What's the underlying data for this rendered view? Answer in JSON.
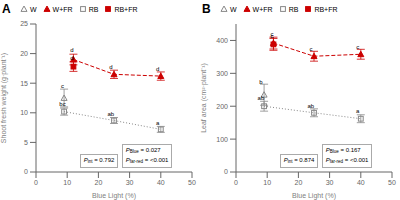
{
  "chart_data": [
    {
      "type": "line",
      "title": "A",
      "xlabel": "Blue Light (%)",
      "ylabel": "Shoot fresh weight (g·plant⁻¹)",
      "xlim": [
        0,
        50
      ],
      "ylim": [
        0,
        25
      ],
      "xticks": [
        0,
        10,
        20,
        30,
        40,
        50
      ],
      "yticks": [
        0,
        5,
        10,
        15,
        20,
        25
      ],
      "series": [
        {
          "name": "W",
          "color": "#888888",
          "marker": "triangle-open",
          "line_style": "dotted",
          "x": [
            9
          ],
          "values": [
            12.5
          ],
          "yerr": [
            1.5
          ]
        },
        {
          "name": "W+FR",
          "color": "#cc0000",
          "marker": "triangle",
          "line_style": "dashed",
          "x": [
            12,
            25,
            40
          ],
          "values": [
            19.0,
            16.5,
            16.2
          ],
          "yerr": [
            0.9,
            0.7,
            0.7
          ]
        },
        {
          "name": "RB",
          "color": "#888888",
          "marker": "square-open",
          "line_style": "dotted",
          "x": [
            9,
            25,
            40
          ],
          "values": [
            10.2,
            8.7,
            7.2
          ],
          "yerr": [
            0.6,
            0.5,
            0.5
          ]
        },
        {
          "name": "RB+FR",
          "color": "#cc0000",
          "marker": "square",
          "line_style": "dashed",
          "x": [
            12
          ],
          "values": [
            17.8
          ],
          "yerr": [
            0.8
          ]
        }
      ],
      "annotations": [
        {
          "x": 8.5,
          "y": 14.2,
          "text": "c"
        },
        {
          "x": 11.5,
          "y": 20.2,
          "text": "d"
        },
        {
          "x": 11.5,
          "y": 19.0,
          "text": "d"
        },
        {
          "x": 8.5,
          "y": 11.1,
          "text": "bc"
        },
        {
          "x": 24,
          "y": 17.4,
          "text": "d"
        },
        {
          "x": 24,
          "y": 9.5,
          "text": "ab"
        },
        {
          "x": 39,
          "y": 17.1,
          "text": "d"
        },
        {
          "x": 39,
          "y": 7.9,
          "text": "a"
        }
      ],
      "boxes": [
        [
          {
            "symbol": "P",
            "subscript": "int",
            "text": "= 0.792"
          }
        ],
        [
          {
            "symbol": "P",
            "subscript": "Blue",
            "text": "= 0.027"
          },
          {
            "symbol": "P",
            "subscript": "far-red",
            "text": "= <0.001"
          }
        ]
      ]
    },
    {
      "type": "line",
      "title": "B",
      "xlabel": "Blue Light (%)",
      "ylabel": "Leaf area (cm²·plant⁻¹)",
      "xlim": [
        0,
        50
      ],
      "ylim": [
        0,
        450
      ],
      "xticks": [
        0,
        10,
        20,
        30,
        40,
        50
      ],
      "yticks": [
        0,
        100,
        200,
        300,
        400
      ],
      "series": [
        {
          "name": "W",
          "color": "#888888",
          "marker": "triangle-open",
          "line_style": "dotted",
          "x": [
            9
          ],
          "values": [
            235
          ],
          "yerr": [
            32
          ]
        },
        {
          "name": "W+FR",
          "color": "#cc0000",
          "marker": "triangle",
          "line_style": "dashed",
          "x": [
            12,
            25,
            40
          ],
          "values": [
            392,
            352,
            358
          ],
          "yerr": [
            18,
            15,
            15
          ]
        },
        {
          "name": "RB",
          "color": "#888888",
          "marker": "square-open",
          "line_style": "dotted",
          "x": [
            9,
            25,
            40
          ],
          "values": [
            200,
            180,
            162
          ],
          "yerr": [
            15,
            12,
            12
          ]
        },
        {
          "name": "RB+FR",
          "color": "#cc0000",
          "marker": "square",
          "line_style": "dashed",
          "x": [
            12
          ],
          "values": [
            388
          ],
          "yerr": [
            18
          ]
        }
      ],
      "annotations": [
        {
          "x": 8.0,
          "y": 268,
          "text": "b"
        },
        {
          "x": 11.5,
          "y": 412,
          "text": "c"
        },
        {
          "x": 11.5,
          "y": 407,
          "text": "c"
        },
        {
          "x": 8.0,
          "y": 218,
          "text": "ab"
        },
        {
          "x": 24,
          "y": 368,
          "text": "c"
        },
        {
          "x": 24,
          "y": 196,
          "text": "ab"
        },
        {
          "x": 39,
          "y": 375,
          "text": "c"
        },
        {
          "x": 39,
          "y": 178,
          "text": "a"
        }
      ],
      "boxes": [
        [
          {
            "symbol": "P",
            "subscript": "int",
            "text": "= 0.874"
          }
        ],
        [
          {
            "symbol": "P",
            "subscript": "Blue",
            "text": "= 0.167"
          },
          {
            "symbol": "P",
            "subscript": "far-red",
            "text": "= <0.001"
          }
        ]
      ]
    }
  ]
}
